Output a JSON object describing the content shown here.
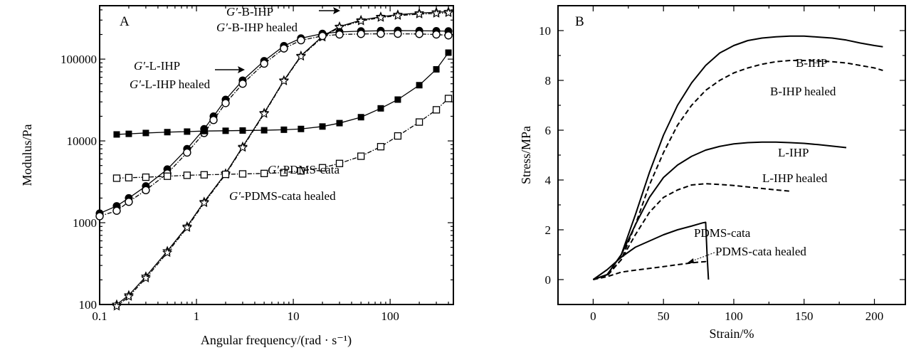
{
  "chart_data": [
    {
      "type": "scatter",
      "panel_label": "A",
      "xlabel": "Angular frequency/(rad · s⁻¹)",
      "ylabel": "Modulus/Pa",
      "xscale": "log",
      "yscale": "log",
      "xlim": [
        0.1,
        450
      ],
      "ylim": [
        100,
        450000
      ],
      "x_ticks": [
        0.1,
        1,
        10,
        100
      ],
      "x_tick_labels": [
        "0.1",
        "1",
        "10",
        "100"
      ],
      "y_ticks": [
        100,
        1000,
        10000,
        100000
      ],
      "y_tick_labels": [
        "100",
        "1000",
        "10000",
        "100000"
      ],
      "grid": false,
      "series": [
        {
          "name": "G′-B-IHP",
          "prefix": "G′",
          "suffix": "-B-IHP",
          "marker": "star-open",
          "line": "solid",
          "x": [
            0.15,
            0.2,
            0.3,
            0.5,
            0.8,
            1.2,
            2,
            3,
            5,
            8,
            12,
            20,
            30,
            50,
            80,
            120,
            200,
            300,
            400
          ],
          "y": [
            100,
            130,
            220,
            450,
            900,
            1800,
            4000,
            8500,
            22000,
            55000,
            110000,
            190000,
            250000,
            300000,
            330000,
            350000,
            365000,
            375000,
            380000
          ]
        },
        {
          "name": "G′-B-IHP healed",
          "prefix": "G′",
          "suffix": "-B-IHP healed",
          "marker": "star-open",
          "line": "dashdot",
          "x": [
            0.15,
            0.2,
            0.3,
            0.5,
            0.8,
            1.2,
            2,
            3,
            5,
            8,
            12,
            20,
            30,
            50,
            80,
            120,
            200,
            300,
            400
          ],
          "y": [
            95,
            125,
            210,
            430,
            870,
            1750,
            3900,
            8300,
            21500,
            54000,
            108000,
            185000,
            245000,
            292000,
            322000,
            340000,
            355000,
            362000,
            368000
          ]
        },
        {
          "name": "G′-L-IHP",
          "prefix": "G′",
          "suffix": "-L-IHP",
          "marker": "circle-filled",
          "line": "solid",
          "x": [
            0.1,
            0.15,
            0.2,
            0.3,
            0.5,
            0.8,
            1.2,
            1.5,
            2,
            3,
            5,
            8,
            12,
            20,
            30,
            50,
            80,
            120,
            200,
            300,
            400
          ],
          "y": [
            1300,
            1600,
            2000,
            2800,
            4500,
            8000,
            14000,
            20000,
            32000,
            55000,
            95000,
            145000,
            180000,
            205000,
            215000,
            220000,
            222000,
            223000,
            222000,
            221000,
            220000
          ]
        },
        {
          "name": "G′-L-IHP healed",
          "prefix": "G′",
          "suffix": "-L-IHP healed",
          "marker": "circle-open",
          "line": "dashdot",
          "x": [
            0.1,
            0.15,
            0.2,
            0.3,
            0.5,
            0.8,
            1.2,
            1.5,
            2,
            3,
            5,
            8,
            12,
            20,
            30,
            50,
            80,
            120,
            200,
            300,
            400
          ],
          "y": [
            1200,
            1400,
            1800,
            2500,
            4000,
            7200,
            12500,
            18000,
            29000,
            50000,
            88000,
            135000,
            170000,
            192000,
            200000,
            203000,
            204000,
            204000,
            203000,
            200000,
            195000
          ]
        },
        {
          "name": "G′-PDMS-cata",
          "prefix": "G′",
          "suffix": "-PDMS-cata",
          "marker": "square-filled",
          "line": "solid",
          "x": [
            0.15,
            0.2,
            0.3,
            0.5,
            0.8,
            1.2,
            2,
            3,
            5,
            8,
            12,
            20,
            30,
            50,
            80,
            120,
            200,
            300,
            400
          ],
          "y": [
            12000,
            12200,
            12500,
            12800,
            13000,
            13200,
            13300,
            13400,
            13500,
            13700,
            14000,
            15000,
            16500,
            19500,
            25000,
            32000,
            48000,
            75000,
            120000
          ]
        },
        {
          "name": "G′-PDMS-cata healed",
          "prefix": "G′",
          "suffix": "-PDMS-cata healed",
          "marker": "square-open",
          "line": "dashdot",
          "x": [
            0.15,
            0.2,
            0.3,
            0.5,
            0.8,
            1.2,
            2,
            3,
            5,
            8,
            12,
            20,
            30,
            50,
            80,
            120,
            200,
            300,
            400
          ],
          "y": [
            3500,
            3550,
            3600,
            3700,
            3800,
            3850,
            3900,
            3950,
            4000,
            4100,
            4300,
            4700,
            5300,
            6500,
            8500,
            11500,
            17000,
            24000,
            33000
          ]
        }
      ]
    },
    {
      "type": "line",
      "panel_label": "B",
      "xlabel": "Strain/%",
      "ylabel": "Stress/MPa",
      "xlim": [
        -25,
        222
      ],
      "ylim": [
        -1,
        11
      ],
      "x_ticks": [
        0,
        50,
        100,
        150,
        200
      ],
      "y_ticks": [
        0,
        2,
        4,
        6,
        8,
        10
      ],
      "grid": false,
      "series": [
        {
          "name": "B-IHP",
          "line": "solid",
          "x": [
            0,
            10,
            20,
            30,
            40,
            50,
            60,
            70,
            80,
            90,
            100,
            110,
            120,
            130,
            140,
            150,
            160,
            170,
            180,
            190,
            200,
            206
          ],
          "y": [
            0,
            0.2,
            1.0,
            2.6,
            4.3,
            5.8,
            7.0,
            7.9,
            8.6,
            9.1,
            9.4,
            9.6,
            9.7,
            9.75,
            9.78,
            9.78,
            9.74,
            9.7,
            9.62,
            9.5,
            9.4,
            9.35
          ]
        },
        {
          "name": "B-IHP healed",
          "line": "dashed",
          "x": [
            0,
            10,
            20,
            30,
            40,
            50,
            60,
            70,
            80,
            90,
            100,
            110,
            120,
            130,
            140,
            150,
            160,
            170,
            180,
            190,
            200,
            206
          ],
          "y": [
            0,
            0.15,
            0.8,
            2.2,
            3.8,
            5.1,
            6.2,
            7.0,
            7.6,
            8.0,
            8.3,
            8.5,
            8.65,
            8.75,
            8.8,
            8.8,
            8.78,
            8.75,
            8.7,
            8.6,
            8.5,
            8.4
          ]
        },
        {
          "name": "L-IHP",
          "line": "solid",
          "x": [
            0,
            10,
            20,
            30,
            40,
            50,
            60,
            70,
            80,
            90,
            100,
            110,
            120,
            130,
            140,
            150,
            160,
            170,
            180
          ],
          "y": [
            0,
            0.2,
            1.0,
            2.2,
            3.3,
            4.1,
            4.6,
            4.95,
            5.2,
            5.35,
            5.45,
            5.5,
            5.52,
            5.52,
            5.5,
            5.47,
            5.42,
            5.36,
            5.3
          ]
        },
        {
          "name": "L-IHP healed",
          "line": "dashed",
          "x": [
            0,
            10,
            20,
            30,
            40,
            50,
            60,
            70,
            80,
            90,
            100,
            110,
            120,
            130,
            140
          ],
          "y": [
            0,
            0.2,
            0.8,
            1.8,
            2.7,
            3.3,
            3.6,
            3.8,
            3.85,
            3.82,
            3.78,
            3.72,
            3.66,
            3.6,
            3.55
          ]
        },
        {
          "name": "PDMS-cata",
          "line": "solid",
          "x": [
            0,
            10,
            20,
            30,
            40,
            50,
            60,
            70,
            78,
            80,
            81,
            82
          ],
          "y": [
            0,
            0.4,
            0.9,
            1.3,
            1.55,
            1.8,
            2.0,
            2.15,
            2.28,
            2.3,
            1.0,
            0
          ]
        },
        {
          "name": "PDMS-cata healed",
          "line": "dashed",
          "x": [
            0,
            10,
            20,
            30,
            40,
            50,
            60,
            70,
            75,
            80,
            81
          ],
          "y": [
            0,
            0.12,
            0.3,
            0.38,
            0.45,
            0.52,
            0.6,
            0.67,
            0.7,
            0.72,
            0.62
          ]
        }
      ]
    }
  ]
}
